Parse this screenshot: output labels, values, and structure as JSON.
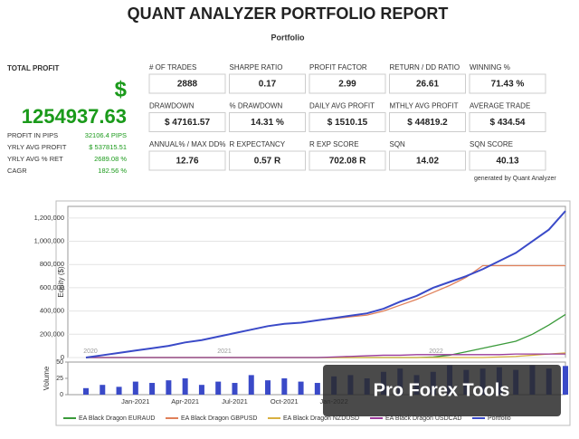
{
  "header": {
    "title": "QUANT ANALYZER PORTFOLIO REPORT",
    "subtitle": "Portfolio"
  },
  "total_profit": {
    "label": "TOTAL PROFIT",
    "currency": "$",
    "value": "1254937.63"
  },
  "summary": [
    {
      "label": "PROFIT IN PIPS",
      "value": "32106.4 PIPS"
    },
    {
      "label": "YRLY AVG PROFIT",
      "value": "$ 537815.51"
    },
    {
      "label": "YRLY AVG % RET",
      "value": "2689.08 %"
    },
    {
      "label": "CAGR",
      "value": "182.56 %"
    }
  ],
  "metrics": [
    {
      "label": "# OF TRADES",
      "value": "2888"
    },
    {
      "label": "SHARPE RATIO",
      "value": "0.17"
    },
    {
      "label": "PROFIT FACTOR",
      "value": "2.99"
    },
    {
      "label": "RETURN / DD RATIO",
      "value": "26.61"
    },
    {
      "label": "WINNING %",
      "value": "71.43 %"
    },
    {
      "label": "DRAWDOWN",
      "value": "$ 47161.57"
    },
    {
      "label": "% DRAWDOWN",
      "value": "14.31 %"
    },
    {
      "label": "DAILY AVG PROFIT",
      "value": "$ 1510.15"
    },
    {
      "label": "MTHLY AVG PROFIT",
      "value": "$ 44819.2"
    },
    {
      "label": "AVERAGE TRADE",
      "value": "$ 434.54"
    },
    {
      "label": "ANNUAL% / MAX DD%",
      "value": "12.76"
    },
    {
      "label": "R EXPECTANCY",
      "value": "0.57 R"
    },
    {
      "label": "R EXP SCORE",
      "value": "702.08 R"
    },
    {
      "label": "SQN",
      "value": "14.02"
    },
    {
      "label": "SQN SCORE",
      "value": "40.13"
    }
  ],
  "generated_by": "generated by Quant Analyzer",
  "watermark": "Pro Forex Tools",
  "chart_data": {
    "type": "line",
    "y_label": "Equity ($)",
    "volume_label": "Volume",
    "year_labels": [
      "2020",
      "2021",
      "2022"
    ],
    "categories": [
      null,
      null,
      null,
      "Jan-2021",
      null,
      null,
      "Apr-2021",
      null,
      null,
      "Jul-2021",
      null,
      null,
      "Oct-2021",
      null,
      null,
      "Jan-2022",
      null,
      null,
      null,
      null,
      null,
      null,
      null,
      null,
      null,
      null,
      null,
      null,
      null,
      null
    ],
    "ylim": [
      0,
      1300000
    ],
    "yticks": [
      {
        "value": 0,
        "label": "0"
      },
      {
        "value": 200000,
        "label": "200,000"
      },
      {
        "value": 400000,
        "label": "400,000"
      },
      {
        "value": 600000,
        "label": "600,000"
      },
      {
        "value": 800000,
        "label": "800,000"
      },
      {
        "value": 1000000,
        "label": "1,000,000"
      },
      {
        "value": 1200000,
        "label": "1,200,000"
      }
    ],
    "series": [
      {
        "name": "EA Black Dragon EURAUD",
        "color": "#3a9a3a",
        "values": [
          0,
          0,
          0,
          0,
          0,
          0,
          0,
          0,
          0,
          0,
          0,
          0,
          0,
          0,
          0,
          0,
          0,
          0,
          0,
          0,
          0,
          5000,
          20000,
          50000,
          80000,
          110000,
          140000,
          200000,
          280000,
          370000
        ]
      },
      {
        "name": "EA Black Dragon GBPUSD",
        "color": "#e0805a",
        "values": [
          0,
          20000,
          40000,
          60000,
          80000,
          100000,
          130000,
          150000,
          180000,
          210000,
          240000,
          270000,
          290000,
          300000,
          320000,
          335000,
          350000,
          365000,
          400000,
          450000,
          500000,
          560000,
          620000,
          690000,
          790000,
          790000,
          790000,
          790000,
          790000,
          790000
        ]
      },
      {
        "name": "EA Black Dragon NZDUSD",
        "color": "#d8b040",
        "values": [
          0,
          0,
          0,
          0,
          0,
          0,
          0,
          0,
          0,
          0,
          0,
          0,
          0,
          0,
          0,
          0,
          0,
          0,
          0,
          0,
          0,
          0,
          0,
          0,
          0,
          5000,
          10000,
          20000,
          30000,
          40000
        ]
      },
      {
        "name": "EA Black Dragon USDCAD",
        "color": "#9a3a9a",
        "values": [
          0,
          0,
          0,
          0,
          0,
          0,
          0,
          0,
          0,
          0,
          0,
          0,
          0,
          0,
          0,
          5000,
          10000,
          15000,
          20000,
          20000,
          25000,
          25000,
          25000,
          25000,
          25000,
          25000,
          30000,
          30000,
          30000,
          30000
        ]
      },
      {
        "name": "Portfolio",
        "color": "#3a4ac8",
        "values": [
          0,
          20000,
          40000,
          60000,
          80000,
          100000,
          130000,
          150000,
          180000,
          210000,
          240000,
          270000,
          290000,
          300000,
          320000,
          340000,
          360000,
          380000,
          420000,
          480000,
          530000,
          600000,
          650000,
          700000,
          760000,
          830000,
          900000,
          1000000,
          1100000,
          1260000
        ]
      }
    ],
    "volume": [
      10,
      15,
      12,
      20,
      18,
      22,
      25,
      15,
      20,
      18,
      30,
      22,
      25,
      20,
      18,
      28,
      30,
      25,
      35,
      40,
      30,
      35,
      45,
      38,
      40,
      42,
      38,
      45,
      40,
      44
    ],
    "vlim": [
      0,
      50
    ],
    "vticks": [
      0,
      25,
      50
    ]
  }
}
